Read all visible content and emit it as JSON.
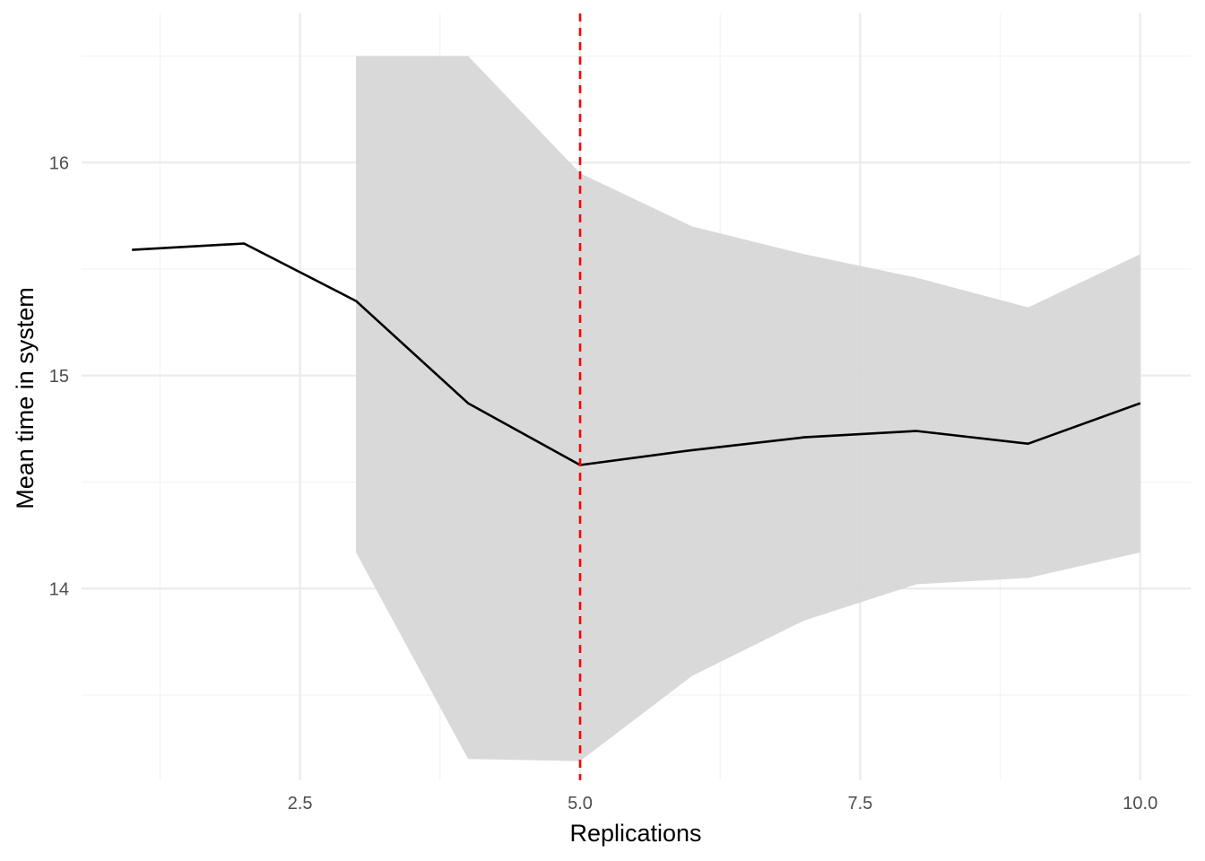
{
  "chart_data": {
    "type": "line",
    "xlabel": "Replications",
    "ylabel": "Mean time in system",
    "xlim": [
      0.55,
      10.45
    ],
    "ylim": [
      13.1,
      16.7
    ],
    "x_ticks": [
      2.5,
      5.0,
      7.5,
      10.0
    ],
    "x_tick_labels": [
      "2.5",
      "5.0",
      "7.5",
      "10.0"
    ],
    "y_ticks": [
      14,
      15,
      16
    ],
    "y_tick_labels": [
      "14",
      "15",
      "16"
    ],
    "x_minor": [
      1.25,
      3.75,
      6.25,
      8.75
    ],
    "y_minor": [
      13.5,
      14.5,
      15.5,
      16.5
    ],
    "grid": true,
    "series": [
      {
        "x": [
          1,
          2,
          3,
          4,
          5,
          6,
          7,
          8,
          9,
          10
        ],
        "values": [
          15.59,
          15.62,
          15.35,
          14.87,
          14.58,
          14.65,
          14.71,
          14.74,
          14.68,
          14.87
        ],
        "color": "#000000"
      }
    ],
    "confidence_band": {
      "x": [
        3,
        4,
        5,
        6,
        7,
        8,
        9,
        10
      ],
      "lower": [
        14.17,
        13.2,
        13.19,
        13.59,
        13.85,
        14.02,
        14.05,
        14.17
      ],
      "upper": [
        16.5,
        16.5,
        15.95,
        15.7,
        15.57,
        15.46,
        15.32,
        15.57
      ],
      "color": "#d6d6d6"
    },
    "reference_line": {
      "x": 5,
      "color": "#ff0000",
      "style": "dashed"
    }
  }
}
